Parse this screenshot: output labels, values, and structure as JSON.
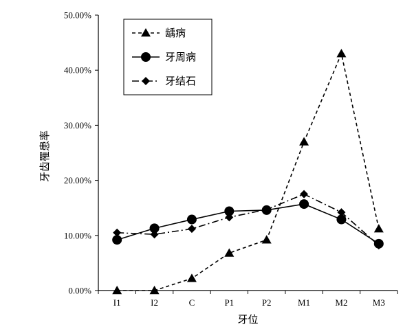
{
  "chart_data": {
    "type": "line",
    "title": "",
    "xlabel": "牙位",
    "ylabel": "牙齿罹患率",
    "categories": [
      "I1",
      "I2",
      "C",
      "P1",
      "P2",
      "M1",
      "M2",
      "M3"
    ],
    "ylim": [
      0,
      50
    ],
    "y_ticks": [
      0,
      10,
      20,
      30,
      40,
      50
    ],
    "y_tick_labels": [
      "0.00%",
      "10.00%",
      "20.00%",
      "30.00%",
      "40.00%",
      "50.00%"
    ],
    "grid": false,
    "legend_position": "top-left",
    "series": [
      {
        "name": "龋病",
        "marker": "triangle",
        "line_style": "dashed",
        "color": "#000000",
        "values": [
          0.0,
          0.0,
          2.2,
          6.8,
          9.2,
          27.0,
          43.0,
          11.2
        ]
      },
      {
        "name": "牙周病",
        "marker": "circle",
        "line_style": "solid",
        "color": "#000000",
        "values": [
          9.2,
          11.3,
          12.9,
          14.4,
          14.6,
          15.7,
          12.9,
          8.5
        ]
      },
      {
        "name": "牙结石",
        "marker": "diamond",
        "line_style": "dash-dot",
        "color": "#000000",
        "values": [
          10.5,
          10.2,
          11.2,
          13.3,
          14.7,
          17.5,
          14.2,
          8.2
        ]
      }
    ]
  }
}
